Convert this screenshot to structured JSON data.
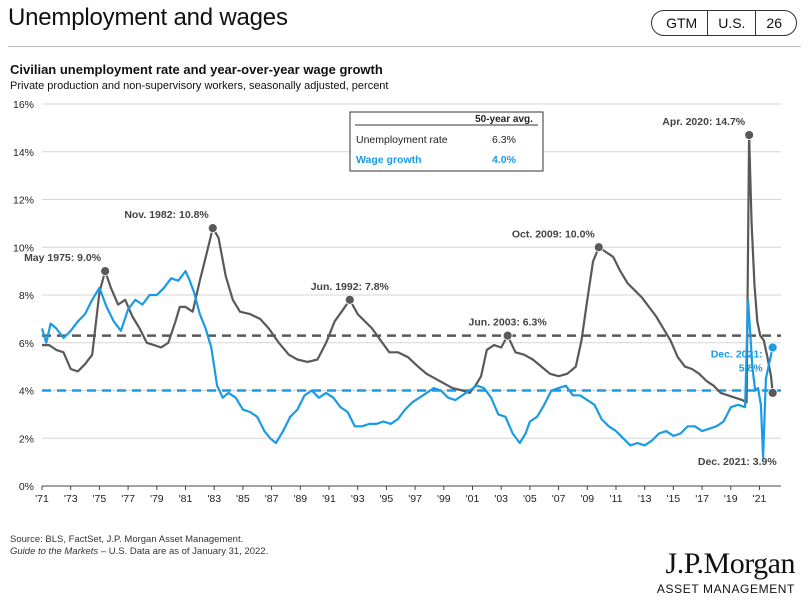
{
  "header": {
    "title": "Unemployment and wages",
    "tags": [
      "GTM",
      "U.S.",
      "26"
    ]
  },
  "footer": {
    "source_line": "Source: BLS, FactSet, J.P. Morgan Asset Management.",
    "guide_name": "Guide to the Markets",
    "guide_rest": " – U.S. Data are as of January 31, 2022."
  },
  "logo": {
    "name": "J.P.Morgan",
    "sub": "ASSET MANAGEMENT"
  },
  "colors": {
    "unemployment": "#595959",
    "wage": "#1a9be3",
    "grid": "#d6d6d6"
  },
  "chart_data": {
    "type": "line",
    "title": "Civilian unemployment rate and year-over-year wage growth",
    "subtitle": "Private production and non-supervisory workers, seasonally adjusted, percent",
    "xlim": [
      1971,
      2022.5
    ],
    "ylim": [
      0,
      16
    ],
    "x_tick_labels": [
      "'71",
      "'73",
      "'75",
      "'77",
      "'79",
      "'81",
      "'83",
      "'85",
      "'87",
      "'89",
      "'91",
      "'93",
      "'95",
      "'97",
      "'99",
      "'01",
      "'03",
      "'05",
      "'07",
      "'09",
      "'11",
      "'13",
      "'15",
      "'17",
      "'19",
      "'21"
    ],
    "x_tick_years": [
      1971,
      1973,
      1975,
      1977,
      1979,
      1981,
      1983,
      1985,
      1987,
      1989,
      1991,
      1993,
      1995,
      1997,
      1999,
      2001,
      2003,
      2005,
      2007,
      2009,
      2011,
      2013,
      2015,
      2017,
      2019,
      2021
    ],
    "y_ticks": [
      0,
      2,
      4,
      6,
      8,
      10,
      12,
      14,
      16
    ],
    "y_tick_labels": [
      "0%",
      "2%",
      "4%",
      "6%",
      "8%",
      "10%",
      "12%",
      "14%",
      "16%"
    ],
    "grid": true,
    "legend_table": {
      "header": "50-year avg.",
      "rows": [
        {
          "label": "Unemployment rate",
          "value": "6.3%",
          "series": "unemployment"
        },
        {
          "label": "Wage growth",
          "value": "4.0%",
          "series": "wage"
        }
      ]
    },
    "averages": {
      "unemployment": 6.3,
      "wage": 4.0
    },
    "series": [
      {
        "key": "unemployment",
        "x": [
          1971.0,
          1971.5,
          1972.0,
          1972.5,
          1973.0,
          1973.5,
          1974.0,
          1974.5,
          1975.0,
          1975.4,
          1975.8,
          1976.3,
          1976.8,
          1977.3,
          1977.8,
          1978.3,
          1978.8,
          1979.3,
          1979.8,
          1980.3,
          1980.6,
          1981.0,
          1981.5,
          1982.0,
          1982.5,
          1982.9,
          1983.3,
          1983.8,
          1984.3,
          1984.8,
          1985.5,
          1986.2,
          1986.8,
          1987.5,
          1988.2,
          1988.8,
          1989.5,
          1990.2,
          1990.8,
          1991.4,
          1992.0,
          1992.45,
          1993.0,
          1993.5,
          1994.0,
          1994.6,
          1995.2,
          1995.8,
          1996.5,
          1997.2,
          1997.8,
          1998.4,
          1999.0,
          1999.6,
          2000.3,
          2000.8,
          2001.2,
          2001.6,
          2002.0,
          2002.5,
          2003.0,
          2003.45,
          2004.0,
          2004.6,
          2005.2,
          2005.8,
          2006.4,
          2007.0,
          2007.6,
          2008.2,
          2008.6,
          2009.0,
          2009.4,
          2009.8,
          2010.3,
          2010.8,
          2011.3,
          2011.8,
          2012.3,
          2012.8,
          2013.3,
          2013.8,
          2014.3,
          2014.8,
          2015.3,
          2015.8,
          2016.3,
          2016.8,
          2017.3,
          2017.8,
          2018.3,
          2018.8,
          2019.3,
          2019.8,
          2020.1,
          2020.28,
          2020.45,
          2020.65,
          2020.85,
          2021.05,
          2021.3,
          2021.55,
          2021.8,
          2021.92
        ],
        "y": [
          5.9,
          5.9,
          5.7,
          5.6,
          4.9,
          4.8,
          5.1,
          5.5,
          8.1,
          9.0,
          8.3,
          7.6,
          7.8,
          7.1,
          6.6,
          6.0,
          5.9,
          5.8,
          6.0,
          6.9,
          7.5,
          7.5,
          7.3,
          8.6,
          9.8,
          10.8,
          10.4,
          8.8,
          7.8,
          7.3,
          7.2,
          7.0,
          6.6,
          6.0,
          5.5,
          5.3,
          5.2,
          5.3,
          6.0,
          6.9,
          7.4,
          7.8,
          7.2,
          6.9,
          6.6,
          6.1,
          5.6,
          5.6,
          5.4,
          5.0,
          4.7,
          4.5,
          4.3,
          4.1,
          4.0,
          3.9,
          4.2,
          4.6,
          5.7,
          5.9,
          5.8,
          6.3,
          5.6,
          5.5,
          5.3,
          5.0,
          4.7,
          4.6,
          4.7,
          5.0,
          6.1,
          7.8,
          9.4,
          10.0,
          9.8,
          9.6,
          9.0,
          8.5,
          8.2,
          7.9,
          7.5,
          7.1,
          6.6,
          6.1,
          5.4,
          5.0,
          4.9,
          4.7,
          4.4,
          4.2,
          3.9,
          3.8,
          3.7,
          3.6,
          3.5,
          14.7,
          11.0,
          8.4,
          6.9,
          6.3,
          6.1,
          5.4,
          4.6,
          3.9
        ]
      },
      {
        "key": "wage",
        "x": [
          1971.0,
          1971.3,
          1971.6,
          1972.0,
          1972.5,
          1973.0,
          1973.5,
          1974.0,
          1974.5,
          1975.0,
          1975.5,
          1976.0,
          1976.5,
          1977.0,
          1977.5,
          1978.0,
          1978.5,
          1979.0,
          1979.5,
          1980.0,
          1980.5,
          1981.0,
          1981.3,
          1981.6,
          1982.0,
          1982.4,
          1982.8,
          1983.2,
          1983.6,
          1984.0,
          1984.5,
          1985.0,
          1985.5,
          1986.0,
          1986.5,
          1986.9,
          1987.3,
          1987.8,
          1988.3,
          1988.8,
          1989.3,
          1989.8,
          1990.3,
          1990.8,
          1991.3,
          1991.8,
          1992.3,
          1992.8,
          1993.3,
          1993.8,
          1994.3,
          1994.8,
          1995.3,
          1995.8,
          1996.3,
          1996.8,
          1997.3,
          1997.8,
          1998.3,
          1998.8,
          1999.3,
          1999.8,
          2000.3,
          2000.8,
          2001.3,
          2001.8,
          2002.3,
          2002.8,
          2003.3,
          2003.8,
          2004.3,
          2004.7,
          2005.0,
          2005.5,
          2006.0,
          2006.5,
          2007.0,
          2007.5,
          2008.0,
          2008.5,
          2009.0,
          2009.5,
          2010.0,
          2010.5,
          2011.0,
          2011.5,
          2012.0,
          2012.5,
          2013.0,
          2013.5,
          2014.0,
          2014.5,
          2015.0,
          2015.5,
          2016.0,
          2016.5,
          2017.0,
          2017.5,
          2018.0,
          2018.5,
          2019.0,
          2019.5,
          2020.0,
          2020.2,
          2020.35,
          2020.5,
          2020.7,
          2020.9,
          2021.1,
          2021.25,
          2021.45,
          2021.7,
          2021.92
        ],
        "y": [
          6.6,
          6.0,
          6.8,
          6.6,
          6.2,
          6.5,
          6.9,
          7.2,
          7.8,
          8.3,
          7.5,
          6.9,
          6.5,
          7.4,
          7.8,
          7.6,
          8.0,
          8.0,
          8.3,
          8.7,
          8.6,
          9.0,
          8.6,
          8.1,
          7.2,
          6.6,
          5.8,
          4.2,
          3.7,
          3.9,
          3.7,
          3.2,
          3.1,
          2.9,
          2.3,
          2.0,
          1.8,
          2.3,
          2.9,
          3.2,
          3.8,
          4.0,
          3.7,
          3.9,
          3.7,
          3.3,
          3.1,
          2.5,
          2.5,
          2.6,
          2.6,
          2.7,
          2.6,
          2.8,
          3.2,
          3.5,
          3.7,
          3.9,
          4.1,
          4.0,
          3.7,
          3.6,
          3.8,
          4.0,
          4.2,
          4.1,
          3.7,
          3.0,
          2.9,
          2.2,
          1.8,
          2.2,
          2.7,
          2.9,
          3.4,
          4.0,
          4.1,
          4.2,
          3.8,
          3.8,
          3.6,
          3.4,
          2.8,
          2.5,
          2.3,
          2.0,
          1.7,
          1.8,
          1.7,
          1.9,
          2.2,
          2.3,
          2.1,
          2.2,
          2.5,
          2.5,
          2.3,
          2.4,
          2.5,
          2.7,
          3.3,
          3.4,
          3.3,
          7.8,
          6.5,
          5.0,
          4.0,
          4.1,
          3.4,
          1.2,
          4.5,
          5.2,
          5.8
        ]
      }
    ],
    "annotations": [
      {
        "text": "May 1975: 9.0%",
        "x": 1975.4,
        "y": 9.0,
        "series": "unemployment",
        "pos": "above-left"
      },
      {
        "text": "Nov. 1982: 10.8%",
        "x": 1982.9,
        "y": 10.8,
        "series": "unemployment",
        "pos": "above-left"
      },
      {
        "text": "Jun. 1992: 7.8%",
        "x": 1992.45,
        "y": 7.8,
        "series": "unemployment",
        "pos": "above"
      },
      {
        "text": "Jun. 2003: 6.3%",
        "x": 2003.45,
        "y": 6.3,
        "series": "unemployment",
        "pos": "above"
      },
      {
        "text": "Oct. 2009: 10.0%",
        "x": 2009.8,
        "y": 10.0,
        "series": "unemployment",
        "pos": "above-left"
      },
      {
        "text": "Apr. 2020: 14.7%",
        "x": 2020.28,
        "y": 14.7,
        "series": "unemployment",
        "pos": "above-left"
      },
      {
        "text": "Dec. 2021: 3.9%",
        "x": 2021.92,
        "y": 3.9,
        "series": "unemployment",
        "pos": "below-left"
      },
      {
        "text": "Dec. 2021:",
        "text2": "5.8%",
        "x": 2021.92,
        "y": 5.8,
        "series": "wage",
        "pos": "left"
      }
    ]
  }
}
